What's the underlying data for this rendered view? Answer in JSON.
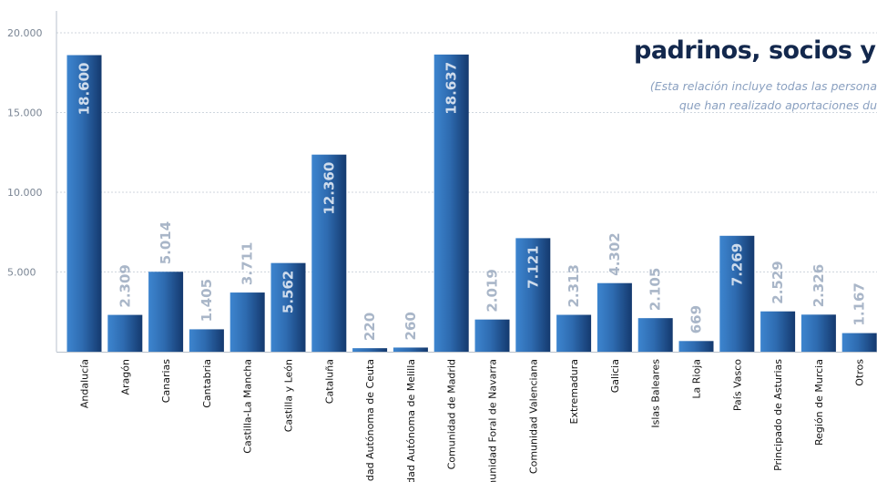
{
  "chart_data": {
    "type": "bar",
    "title": "padrinos, socios y c",
    "subtitle_lines": [
      "(Esta relación incluye todas las persona",
      "que han realizado aportaciones du"
    ],
    "categories": [
      "Andalucía",
      "Aragón",
      "Canarias",
      "Cantabria",
      "Castilla-La Mancha",
      "Castilla y León",
      "Cataluña",
      "Ciudad Autónoma de Ceuta",
      "Ciudad Autónoma de Melilla",
      "Comunidad de Madrid",
      "Comunidad Foral de Navarra",
      "Comunidad Valenciana",
      "Extremadura",
      "Galicia",
      "Islas Baleares",
      "La Rioja",
      "País Vasco",
      "Principado de Asturias",
      "Región de Murcia",
      "Otros"
    ],
    "values": [
      18600,
      2309,
      5014,
      1405,
      3711,
      5562,
      12360,
      220,
      260,
      18637,
      2019,
      7121,
      2313,
      4302,
      2105,
      669,
      7269,
      2529,
      2326,
      1167
    ],
    "value_labels": [
      "18.600",
      "2.309",
      "5.014",
      "1.405",
      "3.711",
      "5.562",
      "12.360",
      "220",
      "260",
      "18.637",
      "2.019",
      "7.121",
      "2.313",
      "4.302",
      "2.105",
      "669",
      "7.269",
      "2.529",
      "2.326",
      "1.167"
    ],
    "y_ticks": [
      5000,
      10000,
      15000,
      20000
    ],
    "y_tick_labels": [
      "5.000",
      "10.000",
      "15.000",
      "20.000"
    ],
    "ylim": [
      0,
      20000
    ],
    "grid": true,
    "bar_color": "#2e6bb0",
    "bar_color_dark": "#16427a",
    "label_color": "#a9b6c8",
    "inside_label_color": "#cfdcec"
  }
}
